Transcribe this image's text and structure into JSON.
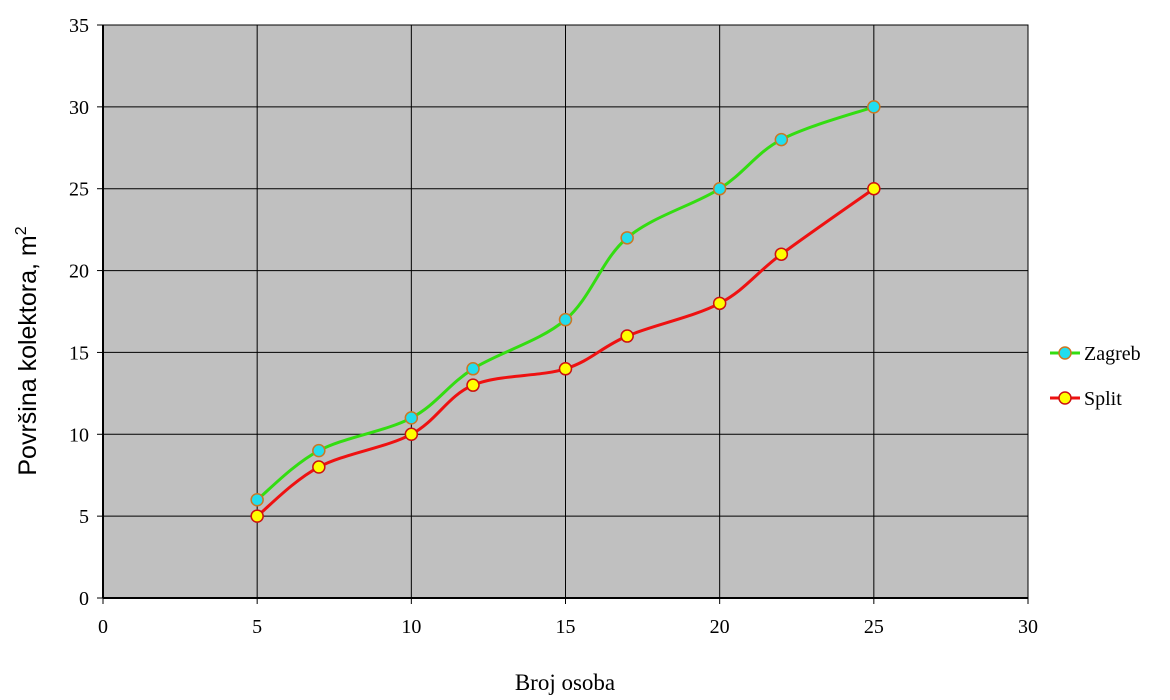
{
  "chart_data": {
    "type": "line",
    "xlabel": "Broj osoba",
    "ylabel": "Površina kolektora, m",
    "ylabel_superscript": "2",
    "xlim": [
      0,
      30
    ],
    "ylim": [
      0,
      35
    ],
    "xticks": [
      0,
      5,
      10,
      15,
      20,
      25,
      30
    ],
    "yticks": [
      0,
      5,
      10,
      15,
      20,
      25,
      30,
      35
    ],
    "grid": true,
    "plot_background": "#c0c0c0",
    "legend_position": "right",
    "series": [
      {
        "name": "Zagreb",
        "line_color": "#33dd11",
        "marker_fill": "#22ddee",
        "marker_edge": "#cc7722",
        "x": [
          5,
          7,
          10,
          12,
          15,
          17,
          20,
          22,
          25
        ],
        "y": [
          6,
          9,
          11,
          14,
          17,
          22,
          25,
          28,
          30
        ]
      },
      {
        "name": "Split",
        "line_color": "#ee1111",
        "marker_fill": "#ffff00",
        "marker_edge": "#cc1111",
        "x": [
          5,
          7,
          10,
          12,
          15,
          17,
          20,
          22,
          25
        ],
        "y": [
          5,
          8,
          10,
          13,
          14,
          16,
          18,
          21,
          25
        ]
      }
    ]
  }
}
